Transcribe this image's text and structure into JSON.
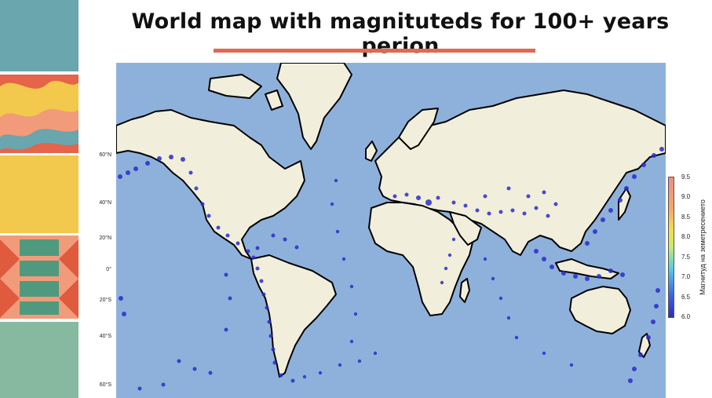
{
  "slide": {
    "title": "World map with magnituteds for 100+ years perion"
  },
  "map": {
    "latitude_labels": [
      "60°N",
      "40°N",
      "20°N",
      "0°",
      "20°S",
      "40°S",
      "60°S"
    ],
    "colorbar": {
      "title": "Магнитуд на земетресението",
      "ticks": [
        "9.5",
        "9.0",
        "8.5",
        "8.0",
        "7.5",
        "7.0",
        "6.5",
        "6.0"
      ],
      "range": [
        6.0,
        9.5
      ]
    },
    "colors": {
      "ocean": "#8eb1dc",
      "land": "#f1eedc",
      "coast": "#000000",
      "quake": "#2b2bc8"
    }
  }
}
